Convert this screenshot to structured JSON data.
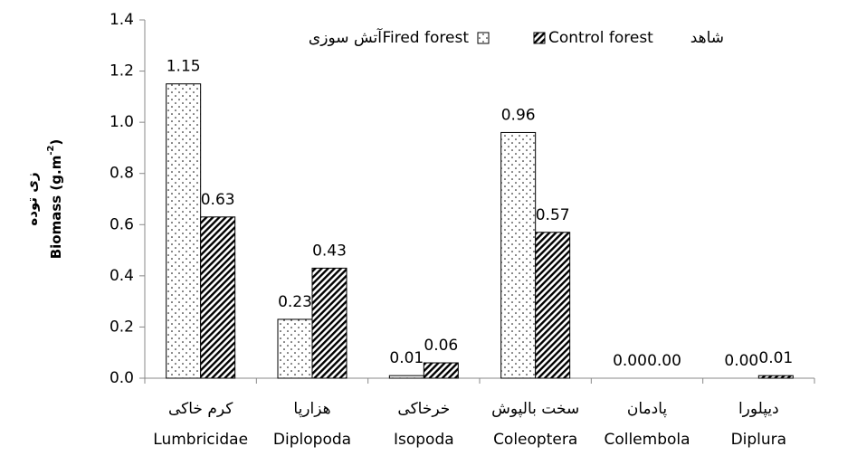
{
  "chart_data": {
    "type": "bar",
    "y_label": {
      "text": "Biomass (g.m",
      "sup": "-2",
      "end": ")"
    },
    "y_label_fa": "زی توده",
    "categories": [
      [
        "کرم خاکی",
        "Lumbricidae"
      ],
      [
        "هزارپا",
        "Diplopoda"
      ],
      [
        "خرخاکی",
        "Isopoda"
      ],
      [
        "سخت بالپوش",
        "Coleoptera"
      ],
      [
        "پادمان",
        "Collembola"
      ],
      [
        "دیپلورا",
        "Diplura"
      ]
    ],
    "series": [
      {
        "name": "Fired forest",
        "name_fa": "آتش سوزی",
        "color": "#000000",
        "pattern": "dots",
        "values": [
          1.15,
          0.23,
          0.01,
          0.96,
          0,
          0
        ],
        "value_labels": [
          "1.15",
          "0.23",
          "0.01",
          "0.96",
          "0.00",
          "0.00"
        ]
      },
      {
        "name": "Control forest",
        "name_fa": "شاهد",
        "color": "#000000",
        "pattern": "hatch",
        "values": [
          0.63,
          0.43,
          0.06,
          0.57,
          0,
          0.01
        ],
        "value_labels": [
          "0.63",
          "0.43",
          "0.06",
          "0.57",
          "0.00",
          "0.01"
        ]
      }
    ],
    "ylim": [
      0,
      1.4
    ],
    "yticks": [
      {
        "value": 0,
        "label": "0.0"
      },
      0.2,
      0.4,
      0.6,
      0.8,
      {
        "value": 1,
        "label": "1.0"
      },
      1.2,
      1.4
    ],
    "grid": false,
    "legend": "top"
  }
}
